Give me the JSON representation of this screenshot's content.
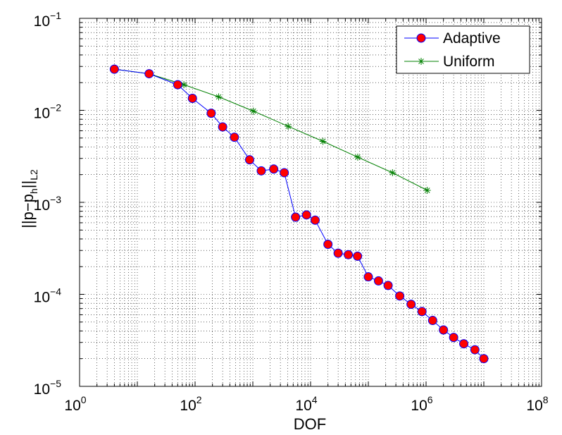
{
  "chart_data": {
    "type": "line",
    "xlabel": "DOF",
    "ylabel": {
      "base": "||p−p",
      "sub1": "h",
      "mid": "||",
      "sub2": "L2"
    },
    "x_scale": "log",
    "y_scale": "log",
    "xlim": [
      1,
      100000000
    ],
    "ylim": [
      1e-05,
      0.1
    ],
    "grid": true,
    "legend_position": "top-right",
    "x_ticks": [
      {
        "value": 1,
        "base": "10",
        "exp": "0"
      },
      {
        "value": 100,
        "base": "10",
        "exp": "2"
      },
      {
        "value": 10000,
        "base": "10",
        "exp": "4"
      },
      {
        "value": 1000000,
        "base": "10",
        "exp": "6"
      },
      {
        "value": 100000000,
        "base": "10",
        "exp": "8"
      }
    ],
    "y_ticks": [
      {
        "value": 1e-05,
        "base": "10",
        "exp": "−5"
      },
      {
        "value": 0.0001,
        "base": "10",
        "exp": "−4"
      },
      {
        "value": 0.001,
        "base": "10",
        "exp": "−3"
      },
      {
        "value": 0.01,
        "base": "10",
        "exp": "−2"
      },
      {
        "value": 0.1,
        "base": "10",
        "exp": "−1"
      }
    ],
    "series": [
      {
        "name": "Adaptive",
        "color": "#0000ff",
        "marker": "circle",
        "marker_fill": "#ff0000",
        "x": [
          4,
          16,
          50,
          90,
          190,
          300,
          480,
          880,
          1400,
          2300,
          3500,
          5500,
          8500,
          12000,
          20000,
          30000,
          45000,
          65000,
          100000,
          150000,
          220000,
          350000,
          550000,
          850000,
          1300000,
          2000000,
          3000000,
          4500000,
          7000000,
          10000000
        ],
        "y": [
          0.028,
          0.025,
          0.019,
          0.0135,
          0.0093,
          0.0066,
          0.0051,
          0.0029,
          0.0022,
          0.0023,
          0.0021,
          0.00069,
          0.00073,
          0.00064,
          0.00035,
          0.00028,
          0.00027,
          0.00026,
          0.000155,
          0.00014,
          0.000125,
          9.6e-05,
          7.8e-05,
          6.5e-05,
          5.2e-05,
          4.1e-05,
          3.4e-05,
          2.9e-05,
          2.5e-05,
          2e-05
        ]
      },
      {
        "name": "Uniform",
        "color": "#008000",
        "marker": "star",
        "x": [
          4,
          16,
          64,
          256,
          1024,
          4096,
          16384,
          65536,
          262144,
          1048576
        ],
        "y": [
          0.028,
          0.025,
          0.019,
          0.014,
          0.0098,
          0.0067,
          0.0046,
          0.0031,
          0.0021,
          0.00135
        ]
      }
    ]
  }
}
